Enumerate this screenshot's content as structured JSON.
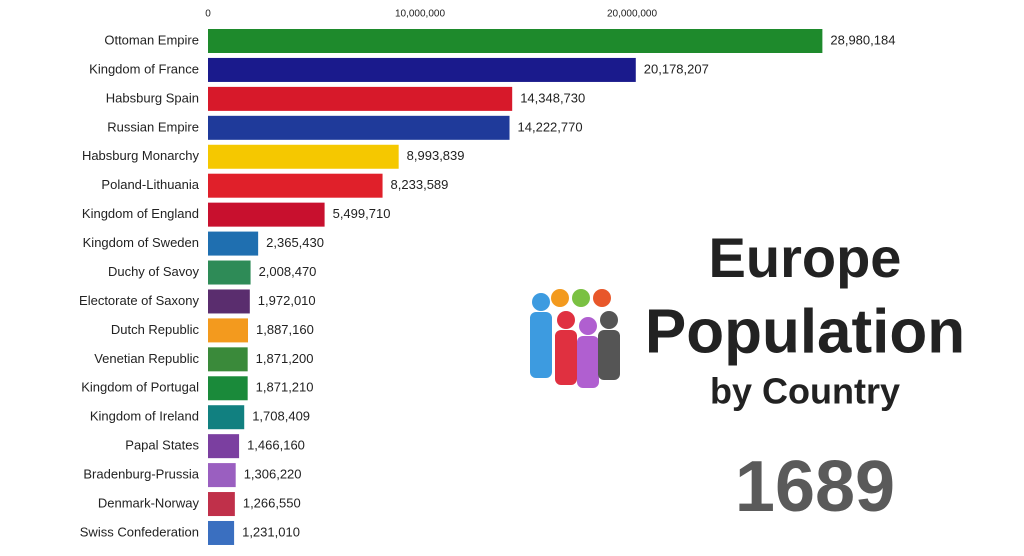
{
  "chart_data": {
    "type": "bar",
    "orientation": "horizontal",
    "title_lines": [
      "Europe",
      "Population",
      "by Country"
    ],
    "title_colors": [
      "#3d9be0",
      "#e8572a",
      "#5a5a5a"
    ],
    "year": "1689",
    "categories": [
      "Ottoman Empire",
      "Kingdom of France",
      "Habsburg Spain",
      "Russian Empire",
      "Habsburg Monarchy",
      "Poland-Lithuania",
      "Kingdom of England",
      "Kingdom of Sweden",
      "Duchy of Savoy",
      "Electorate of Saxony",
      "Dutch Republic",
      "Venetian Republic",
      "Kingdom of Portugal",
      "Kingdom of Ireland",
      "Papal States",
      "Bradenburg-Prussia",
      "Denmark-Norway",
      "Swiss Confederation"
    ],
    "values": [
      28980184,
      20178207,
      14348730,
      14222770,
      8993839,
      8233589,
      5499710,
      2365430,
      2008470,
      1972010,
      1887160,
      1871200,
      1871210,
      1708409,
      1466160,
      1306220,
      1266550,
      1231010
    ],
    "value_labels": [
      "28,980,184",
      "20,178,207",
      "14,348,730",
      "14,222,770",
      "8,993,839",
      "8,233,589",
      "5,499,710",
      "2,365,430",
      "2,008,470",
      "1,972,010",
      "1,887,160",
      "1,871,200",
      "1,871,210",
      "1,708,409",
      "1,466,160",
      "1,306,220",
      "1,266,550",
      "1,231,010"
    ],
    "colors": [
      "#1e8a2c",
      "#1a1a8c",
      "#d7192a",
      "#1f3a9a",
      "#f5c800",
      "#e0202a",
      "#c8102e",
      "#1f6fb0",
      "#2e8b57",
      "#5a2d6e",
      "#f39a1e",
      "#3a8a3a",
      "#1a8a3a",
      "#118080",
      "#7b3fa0",
      "#9a5fc0",
      "#c0304a",
      "#3a6fc0"
    ],
    "xlim": [
      0,
      30000000
    ],
    "xticks": [
      0,
      {
        "value": 10000000,
        "label": "10,000,000"
      },
      {
        "value": 20000000,
        "label": "20,000,000"
      }
    ],
    "grid": false
  }
}
